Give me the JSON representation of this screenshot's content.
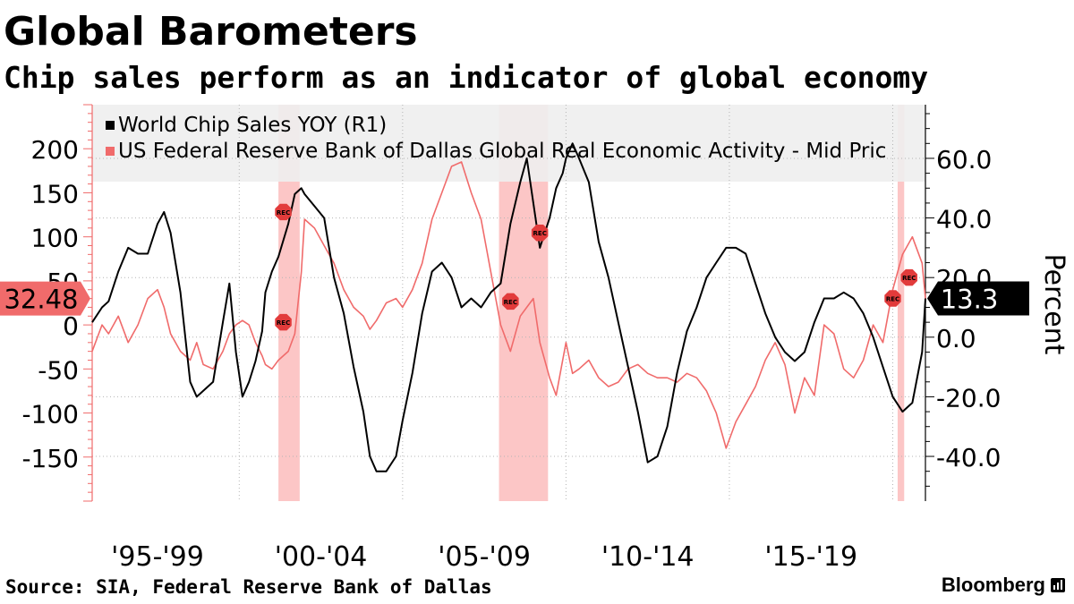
{
  "header": {
    "title": "Global Barometers",
    "subtitle": "Chip sales perform as an indicator of global economy"
  },
  "footer": {
    "source": "Source: SIA, Federal Reserve Bank of Dallas",
    "brand": "Bloomberg"
  },
  "colors": {
    "chip": "#000000",
    "dallas": "#f06b6b",
    "recession_band": "#fbbcbc",
    "marker": "#e23b3b",
    "legend_bg": "#eeeeee",
    "grid": "#b4b4b4"
  },
  "chart_data": {
    "type": "line",
    "x_range": [
      1995.5,
      2021.0
    ],
    "x_tick_labels": [
      {
        "label": "'95-'99",
        "x": 1997.5
      },
      {
        "label": "'00-'04",
        "x": 2002.5
      },
      {
        "label": "'05-'09",
        "x": 2007.5
      },
      {
        "label": "'10-'14",
        "x": 2012.5
      },
      {
        "label": "'15-'19",
        "x": 2017.5
      }
    ],
    "left_axis": {
      "range": [
        -200,
        250
      ],
      "ticks": [
        -150,
        -100,
        -50,
        0,
        50,
        100,
        150,
        200
      ],
      "tick_labels": [
        "-150",
        "-100",
        "-50",
        "0",
        "50",
        "100",
        "150",
        "200"
      ]
    },
    "right_axis": {
      "title": "Percent",
      "range": [
        -55,
        78
      ],
      "ticks": [
        -40,
        -20,
        0,
        20,
        40,
        60
      ],
      "tick_labels": [
        "-40.0",
        "-20.0",
        "0.0",
        "20.0",
        "40.0",
        "60.0"
      ]
    },
    "recessions": [
      {
        "start": 2001.2,
        "end": 2001.85
      },
      {
        "start": 2007.95,
        "end": 2009.45
      },
      {
        "start": 2020.15,
        "end": 2020.35
      }
    ],
    "rec_label": "REC",
    "rec_markers": [
      {
        "x": 2001.35,
        "axis": "right",
        "y": 42
      },
      {
        "x": 2001.35,
        "axis": "right",
        "y": 5
      },
      {
        "x": 2008.3,
        "axis": "right",
        "y": 12
      },
      {
        "x": 2009.2,
        "axis": "right",
        "y": 35
      },
      {
        "x": 2020.0,
        "axis": "right",
        "y": 13
      },
      {
        "x": 2020.5,
        "axis": "right",
        "y": 20
      }
    ],
    "series": [
      {
        "name": "World Chip Sales YOY (R1)",
        "legend_label": "World Chip Sales YOY (R1)",
        "axis": "right",
        "last_value_label": "13.3",
        "x": [
          1995.5,
          1995.8,
          1996.0,
          1996.3,
          1996.6,
          1996.9,
          1997.2,
          1997.5,
          1997.7,
          1997.9,
          1998.2,
          1998.5,
          1998.7,
          1998.9,
          1999.2,
          1999.5,
          1999.7,
          1999.9,
          2000.1,
          2000.3,
          2000.5,
          2000.7,
          2000.8,
          2001.0,
          2001.2,
          2001.5,
          2001.7,
          2001.9,
          2002.0,
          2002.3,
          2002.6,
          2002.9,
          2003.2,
          2003.5,
          2003.8,
          2004.0,
          2004.2,
          2004.5,
          2004.8,
          2005.0,
          2005.3,
          2005.6,
          2005.9,
          2006.2,
          2006.5,
          2006.8,
          2007.1,
          2007.4,
          2007.7,
          2008.0,
          2008.3,
          2008.6,
          2008.8,
          2009.0,
          2009.2,
          2009.5,
          2009.7,
          2009.9,
          2010.0,
          2010.2,
          2010.4,
          2010.7,
          2011.0,
          2011.3,
          2011.6,
          2011.9,
          2012.2,
          2012.5,
          2012.8,
          2013.1,
          2013.4,
          2013.7,
          2014.0,
          2014.3,
          2014.6,
          2014.9,
          2015.2,
          2015.5,
          2015.8,
          2016.1,
          2016.4,
          2016.7,
          2017.0,
          2017.3,
          2017.6,
          2017.9,
          2018.2,
          2018.5,
          2018.8,
          2019.1,
          2019.4,
          2019.7,
          2020.0,
          2020.3,
          2020.6,
          2020.9,
          2021.0
        ],
        "y": [
          5,
          10,
          12,
          22,
          30,
          28,
          28,
          38,
          42,
          35,
          15,
          -15,
          -20,
          -18,
          -15,
          5,
          18,
          -5,
          -20,
          -15,
          -8,
          2,
          15,
          22,
          27,
          38,
          48,
          50,
          48,
          44,
          40,
          20,
          8,
          -10,
          -25,
          -40,
          -45,
          -45,
          -40,
          -28,
          -12,
          8,
          22,
          25,
          20,
          10,
          13,
          10,
          15,
          18,
          38,
          52,
          60,
          45,
          30,
          40,
          50,
          55,
          60,
          65,
          60,
          52,
          32,
          20,
          5,
          -10,
          -25,
          -42,
          -40,
          -30,
          -12,
          2,
          10,
          20,
          25,
          30,
          30,
          28,
          18,
          8,
          0,
          -5,
          -8,
          -5,
          5,
          13,
          13,
          15,
          13,
          8,
          0,
          -10,
          -20,
          -25,
          -22,
          -5,
          13
        ]
      },
      {
        "name": "US Federal Reserve Bank of Dallas Global Real Economic Activity - Mid Price",
        "legend_label": "US Federal Reserve Bank of Dallas Global Real Economic Activity - Mid Pric",
        "axis": "left",
        "last_value_label": "32.48",
        "x": [
          1995.5,
          1995.8,
          1996.0,
          1996.3,
          1996.6,
          1996.9,
          1997.2,
          1997.5,
          1997.7,
          1997.9,
          1998.2,
          1998.5,
          1998.7,
          1998.9,
          1999.2,
          1999.5,
          1999.7,
          1999.9,
          2000.1,
          2000.3,
          2000.5,
          2000.7,
          2000.8,
          2001.0,
          2001.2,
          2001.5,
          2001.7,
          2001.9,
          2002.0,
          2002.3,
          2002.6,
          2002.9,
          2003.2,
          2003.5,
          2003.8,
          2004.0,
          2004.2,
          2004.5,
          2004.8,
          2005.0,
          2005.3,
          2005.6,
          2005.9,
          2006.2,
          2006.5,
          2006.8,
          2007.1,
          2007.4,
          2007.7,
          2008.0,
          2008.3,
          2008.6,
          2008.8,
          2009.0,
          2009.2,
          2009.5,
          2009.7,
          2009.9,
          2010.0,
          2010.2,
          2010.4,
          2010.7,
          2011.0,
          2011.3,
          2011.6,
          2011.9,
          2012.2,
          2012.5,
          2012.8,
          2013.1,
          2013.4,
          2013.7,
          2014.0,
          2014.3,
          2014.6,
          2014.9,
          2015.2,
          2015.5,
          2015.8,
          2016.1,
          2016.4,
          2016.7,
          2017.0,
          2017.3,
          2017.6,
          2017.9,
          2018.2,
          2018.5,
          2018.8,
          2019.1,
          2019.4,
          2019.7,
          2020.0,
          2020.3,
          2020.6,
          2020.9,
          2021.0
        ],
        "y": [
          -30,
          0,
          -10,
          10,
          -20,
          0,
          30,
          40,
          20,
          -10,
          -30,
          -40,
          -20,
          -45,
          -50,
          -30,
          -10,
          0,
          5,
          0,
          -20,
          -35,
          -45,
          -50,
          -40,
          -30,
          -10,
          60,
          120,
          110,
          90,
          70,
          40,
          20,
          10,
          -5,
          5,
          25,
          30,
          20,
          40,
          70,
          120,
          150,
          180,
          185,
          150,
          120,
          60,
          0,
          -30,
          10,
          20,
          30,
          -20,
          -60,
          -80,
          -40,
          -20,
          -55,
          -50,
          -40,
          -60,
          -70,
          -65,
          -50,
          -45,
          -55,
          -60,
          -60,
          -65,
          -55,
          -60,
          -75,
          -100,
          -140,
          -110,
          -90,
          -70,
          -40,
          -20,
          -45,
          -100,
          -60,
          -80,
          0,
          -10,
          -50,
          -60,
          -40,
          0,
          -20,
          40,
          80,
          100,
          70,
          30
        ]
      }
    ]
  }
}
